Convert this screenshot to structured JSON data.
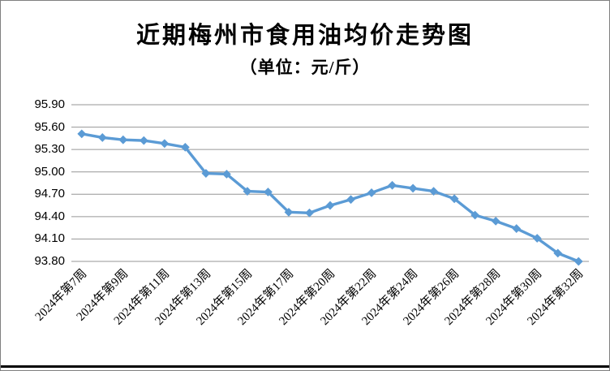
{
  "chart_data": {
    "type": "line",
    "title": "近期梅州市食用油均价走势图",
    "subtitle": "（单位：元/斤）",
    "x_tick_labels": [
      "2024年第7周",
      "2024年第9周",
      "2024年第11周",
      "2024年第13周",
      "2024年第15周",
      "2024年第17周",
      "2024年第20周",
      "2024年第22周",
      "2024年第24周",
      "2024年第26周",
      "2024年第28周",
      "2024年第30周",
      "2024年第32周"
    ],
    "label_every": 2,
    "num_points": 25,
    "values": [
      95.51,
      95.46,
      95.43,
      95.42,
      95.38,
      95.33,
      94.98,
      94.97,
      94.74,
      94.73,
      94.46,
      94.45,
      94.55,
      94.63,
      94.72,
      94.82,
      94.78,
      94.74,
      94.64,
      94.42,
      94.34,
      94.24,
      94.11,
      93.91,
      93.8
    ],
    "yticks": [
      "95.90",
      "95.60",
      "95.30",
      "95.00",
      "94.70",
      "94.40",
      "94.10",
      "93.80"
    ],
    "ylim": [
      93.8,
      95.9
    ],
    "ytick_step": 0.3,
    "grid": true,
    "legend": "none",
    "marker": "diamond",
    "line_color": "#5B9BD5",
    "grid_color": "#969696",
    "text_color": "#000000",
    "bottom_rule_color": "#000000"
  }
}
